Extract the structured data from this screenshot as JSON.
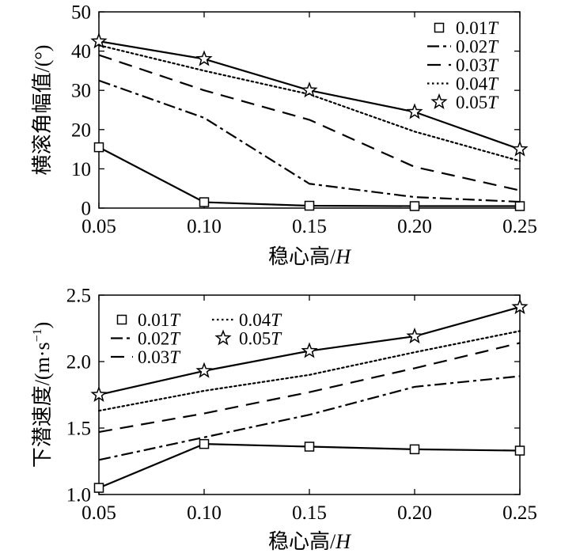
{
  "chart_data": [
    {
      "type": "line",
      "ylabel": "横滚角幅值/(°)",
      "xlabel_main": "稳心高/",
      "xlabel_var": "H",
      "categories": [
        "0.05",
        "0.10",
        "0.15",
        "0.20",
        "0.25"
      ],
      "x": [
        0.05,
        0.1,
        0.15,
        0.2,
        0.25
      ],
      "xlim": [
        0.05,
        0.25
      ],
      "ylim": [
        0,
        50
      ],
      "yticks": [
        "0",
        "10",
        "20",
        "30",
        "40",
        "50"
      ],
      "legend_position": "top-right",
      "series": [
        {
          "name": "0.01",
          "var": "T",
          "style": "solid-square",
          "values": [
            15.5,
            1.5,
            0.6,
            0.5,
            0.5
          ]
        },
        {
          "name": "0.02",
          "var": "T",
          "style": "dashdot",
          "values": [
            32.5,
            23.0,
            6.2,
            2.8,
            1.6
          ]
        },
        {
          "name": "0.03",
          "var": "T",
          "style": "dashed",
          "values": [
            39.0,
            30.0,
            22.5,
            10.5,
            4.5
          ]
        },
        {
          "name": "0.04",
          "var": "T",
          "style": "dotted",
          "values": [
            41.5,
            35.0,
            29.0,
            19.5,
            12.0
          ]
        },
        {
          "name": "0.05",
          "var": "T",
          "style": "solid-star",
          "values": [
            42.5,
            38.0,
            30.0,
            24.5,
            15.0
          ]
        }
      ]
    },
    {
      "type": "line",
      "ylabel_main": "下潜速度/(m·s",
      "ylabel_sup": "−1",
      "ylabel_end": ")",
      "xlabel_main": "稳心高/",
      "xlabel_var": "H",
      "categories": [
        "0.05",
        "0.10",
        "0.15",
        "0.20",
        "0.25"
      ],
      "x": [
        0.05,
        0.1,
        0.15,
        0.2,
        0.25
      ],
      "xlim": [
        0.05,
        0.25
      ],
      "ylim": [
        1.0,
        2.5
      ],
      "yticks": [
        "1.0",
        "1.5",
        "2.0",
        "2.5"
      ],
      "legend_position": "top-left",
      "series": [
        {
          "name": "0.01",
          "var": "T",
          "style": "solid-square",
          "values": [
            1.05,
            1.38,
            1.36,
            1.34,
            1.33
          ]
        },
        {
          "name": "0.02",
          "var": "T",
          "style": "dashdot",
          "values": [
            1.26,
            1.43,
            1.6,
            1.81,
            1.89
          ]
        },
        {
          "name": "0.03",
          "var": "T",
          "style": "dashed",
          "values": [
            1.47,
            1.61,
            1.77,
            1.95,
            2.14
          ]
        },
        {
          "name": "0.04",
          "var": "T",
          "style": "dotted",
          "values": [
            1.63,
            1.78,
            1.9,
            2.07,
            2.23
          ]
        },
        {
          "name": "0.05",
          "var": "T",
          "style": "solid-star",
          "values": [
            1.75,
            1.93,
            2.08,
            2.19,
            2.41
          ]
        }
      ]
    }
  ]
}
